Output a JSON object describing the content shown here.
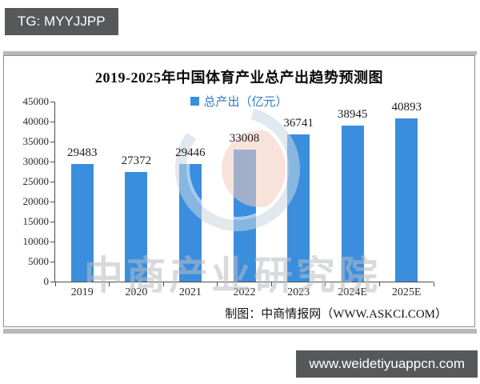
{
  "badges": {
    "top_left": "TG: MYYJJPP",
    "bottom_right": "www.weidetiyuappcn.com",
    "background": "#57585a",
    "text_color": "#ffffff"
  },
  "chart_data": {
    "type": "bar",
    "title": "2019-2025年中国体育产业总产出趋势预测图",
    "legend": "总产出（亿元）",
    "categories": [
      "2019",
      "2020",
      "2021",
      "2022",
      "2023",
      "2024E",
      "2025E"
    ],
    "values": [
      29483,
      27372,
      29446,
      33008,
      36741,
      38945,
      40893
    ],
    "ylim": [
      0,
      45000
    ],
    "ytick_step": 5000,
    "grid": "off",
    "legend_position": "top-center",
    "bar_color": "#3b8ede",
    "axis_color": "#4d4d4d",
    "xlabel": "",
    "ylabel": "",
    "attribution": "制图：中商情报网（WWW.ASKCI.COM）",
    "watermark_text": "中商产业研究院",
    "watermark_logo_colors": {
      "ring": "#c9d7e1",
      "ball": "#f3cdbd"
    }
  }
}
